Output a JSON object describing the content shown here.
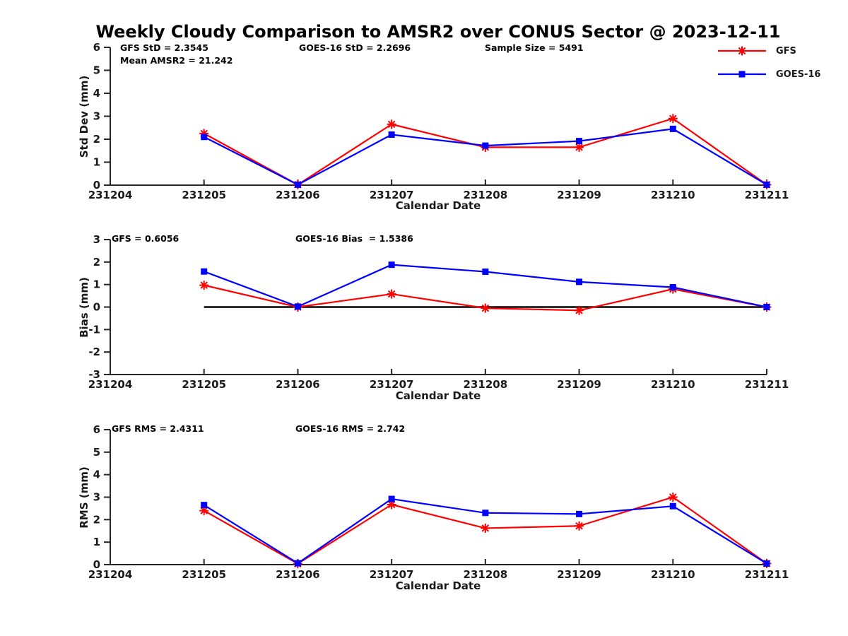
{
  "title": "Weekly Cloudy Comparison to AMSR2 over CONUS Sector @ 2023-12-11",
  "axis": {
    "color": "#262626",
    "text_color": "#1a1a1a",
    "zero_line_color": "#000000"
  },
  "legend": {
    "entries": [
      {
        "label": "GFS",
        "color": "#ff0000",
        "marker": "asterisk"
      },
      {
        "label": "GOES-16",
        "color": "#0000ff",
        "marker": "square"
      }
    ]
  },
  "chart_data": [
    {
      "type": "line",
      "ylabel": "Std Dev (mm)",
      "xlabel": "Calendar Date",
      "ylim": [
        0,
        6
      ],
      "ytick_step": 1,
      "grid": false,
      "legend_position": "upper-right-outside",
      "categories": [
        "231204",
        "231205",
        "231206",
        "231207",
        "231208",
        "231209",
        "231210",
        "231211"
      ],
      "series": [
        {
          "name": "GFS",
          "color": "#ff0000",
          "marker": "asterisk",
          "values": [
            null,
            2.25,
            0.02,
            2.65,
            1.65,
            1.65,
            2.9,
            0.02
          ]
        },
        {
          "name": "GOES-16",
          "color": "#0000ff",
          "marker": "square",
          "values": [
            null,
            2.1,
            0.02,
            2.2,
            1.72,
            1.92,
            2.45,
            0.02
          ]
        }
      ],
      "annotations": [
        "GFS StD = 2.3545",
        "Mean AMSR2 = 21.242",
        "GOES-16 StD = 2.2696",
        "Sample Size = 5491"
      ]
    },
    {
      "type": "line",
      "ylabel": "Bias (mm)",
      "xlabel": "Calendar Date",
      "ylim": [
        -3,
        3
      ],
      "ytick_step": 1,
      "grid": false,
      "categories": [
        "231204",
        "231205",
        "231206",
        "231207",
        "231208",
        "231209",
        "231210",
        "231211"
      ],
      "series": [
        {
          "name": "GFS",
          "color": "#ff0000",
          "marker": "asterisk",
          "values": [
            null,
            0.97,
            0.0,
            0.58,
            -0.05,
            -0.15,
            0.8,
            0.0
          ]
        },
        {
          "name": "GOES-16",
          "color": "#0000ff",
          "marker": "square",
          "values": [
            null,
            1.58,
            0.02,
            1.88,
            1.57,
            1.12,
            0.88,
            0.0
          ]
        }
      ],
      "zero_line": {
        "y": 0,
        "x_from": "231205",
        "x_to": "231211"
      },
      "annotations": [
        "GFS = 0.6056",
        "GOES-16 Bias  = 1.5386"
      ]
    },
    {
      "type": "line",
      "ylabel": "RMS (mm)",
      "xlabel": "Calendar Date",
      "ylim": [
        0,
        6
      ],
      "ytick_step": 1,
      "grid": false,
      "categories": [
        "231204",
        "231205",
        "231206",
        "231207",
        "231208",
        "231209",
        "231210",
        "231211"
      ],
      "series": [
        {
          "name": "GFS",
          "color": "#ff0000",
          "marker": "asterisk",
          "values": [
            null,
            2.4,
            0.04,
            2.67,
            1.62,
            1.72,
            3.0,
            0.05
          ]
        },
        {
          "name": "GOES-16",
          "color": "#0000ff",
          "marker": "square",
          "values": [
            null,
            2.65,
            0.06,
            2.92,
            2.3,
            2.25,
            2.6,
            0.05
          ]
        }
      ],
      "annotations": [
        "GFS RMS = 2.4311",
        "GOES-16 RMS = 2.742"
      ]
    }
  ]
}
